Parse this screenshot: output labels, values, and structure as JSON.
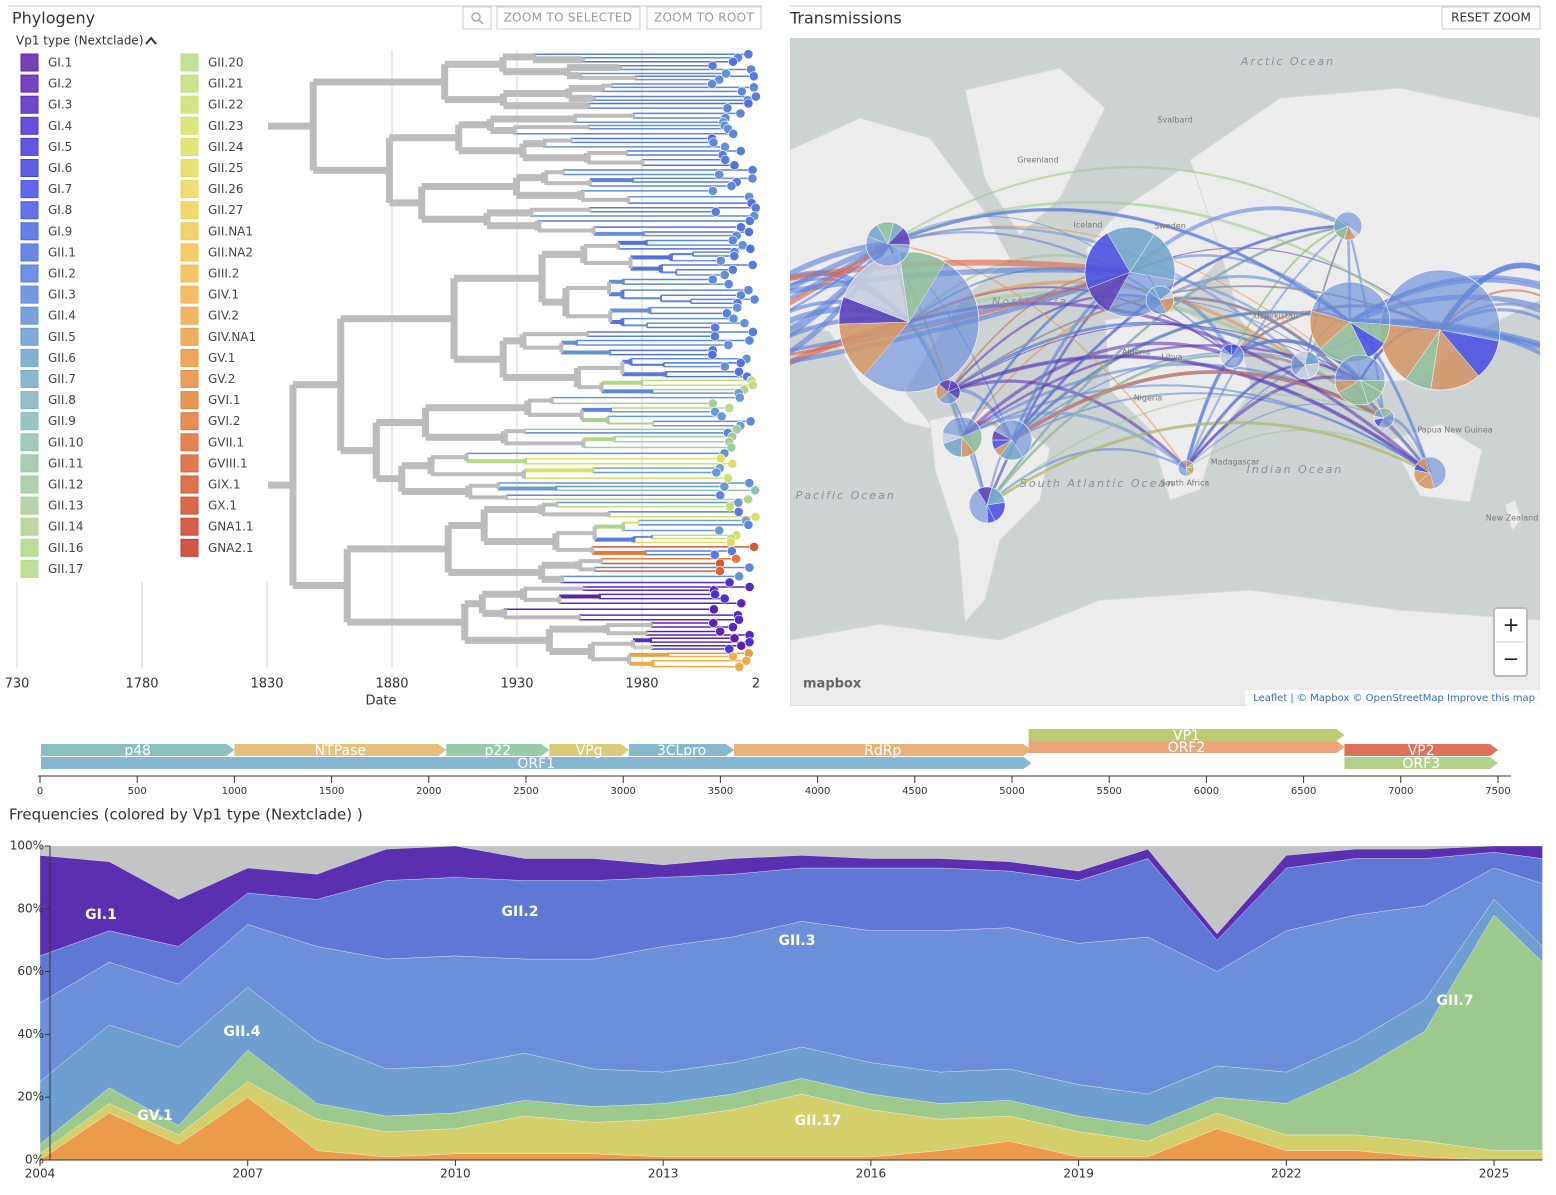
{
  "phylogeny": {
    "title": "Phylogeny",
    "buttons": [
      "ZOOM TO SELECTED",
      "ZOOM TO ROOT"
    ],
    "legend_title": "Vp1 type (Nextclade)",
    "legend": [
      {
        "name": "GI.1",
        "color": "#5e22a8"
      },
      {
        "name": "GI.2",
        "color": "#5c25b8"
      },
      {
        "name": "GI.3",
        "color": "#5529c6"
      },
      {
        "name": "GI.4",
        "color": "#4d30d2"
      },
      {
        "name": "GI.5",
        "color": "#4638dc"
      },
      {
        "name": "GI.6",
        "color": "#4343e2"
      },
      {
        "name": "GI.7",
        "color": "#454fe4"
      },
      {
        "name": "GI.8",
        "color": "#485be4"
      },
      {
        "name": "GI.9",
        "color": "#4c66e3"
      },
      {
        "name": "GII.1",
        "color": "#5171e1"
      },
      {
        "name": "GII.2",
        "color": "#577cde"
      },
      {
        "name": "GII.3",
        "color": "#5d87da"
      },
      {
        "name": "GII.4",
        "color": "#6391d6"
      },
      {
        "name": "GII.5",
        "color": "#699bd2"
      },
      {
        "name": "GII.6",
        "color": "#70a4cd"
      },
      {
        "name": "GII.7",
        "color": "#77acc7"
      },
      {
        "name": "GII.8",
        "color": "#7fb4c1"
      },
      {
        "name": "GII.9",
        "color": "#87bbba"
      },
      {
        "name": "GII.10",
        "color": "#8fc1b2"
      },
      {
        "name": "GII.11",
        "color": "#97c6aa"
      },
      {
        "name": "GII.12",
        "color": "#a0caa1"
      },
      {
        "name": "GII.13",
        "color": "#a8ce98"
      },
      {
        "name": "GII.14",
        "color": "#b0d290"
      },
      {
        "name": "GII.16",
        "color": "#b2d88a"
      },
      {
        "name": "GII.17",
        "color": "#b4db86"
      },
      {
        "name": "GII.20",
        "color": "#b7dd85"
      },
      {
        "name": "GII.21",
        "color": "#c2de7a"
      },
      {
        "name": "GII.22",
        "color": "#cce072"
      },
      {
        "name": "GII.23",
        "color": "#d6e06a"
      },
      {
        "name": "GII.24",
        "color": "#dedf63"
      },
      {
        "name": "GII.25",
        "color": "#e5dc5e"
      },
      {
        "name": "GII.26",
        "color": "#ebd85a"
      },
      {
        "name": "GII.27",
        "color": "#f0d256"
      },
      {
        "name": "GII.NA1",
        "color": "#f2cb53"
      },
      {
        "name": "GII.NA2",
        "color": "#f3c350"
      },
      {
        "name": "GIII.2",
        "color": "#f3bb4d"
      },
      {
        "name": "GIV.1",
        "color": "#f2b24a"
      },
      {
        "name": "GIV.2",
        "color": "#f0a947"
      },
      {
        "name": "GIV.NA1",
        "color": "#eea044"
      },
      {
        "name": "GV.1",
        "color": "#ec9741"
      },
      {
        "name": "GV.2",
        "color": "#e98d3e"
      },
      {
        "name": "GVI.1",
        "color": "#e6833b"
      },
      {
        "name": "GVI.2",
        "color": "#e37938"
      },
      {
        "name": "GVII.1",
        "color": "#df6f35"
      },
      {
        "name": "GVIII.1",
        "color": "#db6432"
      },
      {
        "name": "GIX.1",
        "color": "#d7592f"
      },
      {
        "name": "GX.1",
        "color": "#d34e2c"
      },
      {
        "name": "GNA1.1",
        "color": "#ce432a"
      },
      {
        "name": "GNA2.1",
        "color": "#ca3828"
      }
    ],
    "axis": {
      "label": "Date",
      "xlim": [
        1728,
        2032
      ],
      "xticks": [
        {
          "value": 1730,
          "label": "730"
        },
        1780,
        1830,
        1880,
        1930,
        1980,
        {
          "value": 2030,
          "label": "2"
        }
      ]
    }
  },
  "transmissions": {
    "title": "Transmissions",
    "button": "RESET ZOOM",
    "zoom_in": "+",
    "zoom_out": "−",
    "logo": "mapbox",
    "attribution": "Leaflet | © Mapbox © OpenStreetMap Improve this map",
    "ocean_labels": [
      "Arctic Ocean",
      "North Atla",
      "South Atlantic Ocean",
      "Indian Ocean",
      "South Pacific Ocean"
    ],
    "place_labels": [
      "Greenland",
      "Svalbard",
      "Iceland",
      "Sweden",
      "Algeria",
      "Libya",
      "Nigeria",
      "Uzbekistan",
      "Madagascar",
      "South Africa",
      "Papua New Guinea",
      "New Zealand"
    ]
  },
  "genome": {
    "xlim": [
      0,
      7500
    ],
    "xticks": [
      0,
      500,
      1000,
      1500,
      2000,
      2500,
      3000,
      3500,
      4000,
      4500,
      5000,
      5500,
      6000,
      6500,
      7000,
      7500
    ],
    "genes": [
      {
        "name": "p48",
        "start": 5,
        "end": 1000,
        "color": "#7fb8b8"
      },
      {
        "name": "NTPase",
        "start": 1000,
        "end": 2090,
        "color": "#e1b870"
      },
      {
        "name": "p22",
        "start": 2090,
        "end": 2620,
        "color": "#8ec4a0"
      },
      {
        "name": "VPg",
        "start": 2620,
        "end": 3030,
        "color": "#d6c46a"
      },
      {
        "name": "3CLpro",
        "start": 3030,
        "end": 3570,
        "color": "#7ab0c8"
      },
      {
        "name": "RdRp",
        "start": 3570,
        "end": 5100,
        "color": "#e6a86a"
      },
      {
        "name": "ORF1",
        "start": 5,
        "end": 5100,
        "color": "#7aaecc"
      },
      {
        "name": "VP1",
        "start": 5085,
        "end": 6710,
        "color": "#b8c466"
      },
      {
        "name": "ORF2",
        "start": 5085,
        "end": 6710,
        "color": "#e89c6c"
      },
      {
        "name": "VP2",
        "start": 6710,
        "end": 7500,
        "color": "#dc6048"
      },
      {
        "name": "ORF3",
        "start": 6710,
        "end": 7500,
        "color": "#a8cc7c"
      }
    ]
  },
  "chart_data": {
    "type": "stacked_area",
    "title": "Frequencies (colored by Vp1 type (Nextclade) )",
    "x": [
      2004,
      2005,
      2006,
      2007,
      2008,
      2009,
      2010,
      2011,
      2012,
      2013,
      2014,
      2015,
      2016,
      2017,
      2018,
      2019,
      2020,
      2021,
      2022,
      2023,
      2024,
      2025,
      2025.7
    ],
    "xlim": [
      2004,
      2025.7
    ],
    "xticks": [
      2004,
      2007,
      2010,
      2013,
      2016,
      2019,
      2022,
      2025
    ],
    "ylim": [
      0,
      100
    ],
    "yticks": [
      {
        "value": 0,
        "label": "0%"
      },
      {
        "value": 20,
        "label": "20%"
      },
      {
        "value": 40,
        "label": "40%"
      },
      {
        "value": 60,
        "label": "60%"
      },
      {
        "value": 80,
        "label": "80%"
      },
      {
        "value": 100,
        "label": "100%"
      }
    ],
    "series": [
      {
        "name": "GV.1",
        "color": "#ec9a4c",
        "values": [
          0,
          15,
          5,
          20,
          3,
          1,
          2,
          2,
          2,
          1,
          1,
          1,
          1,
          3,
          6,
          1,
          1,
          10,
          3,
          3,
          1,
          0,
          0
        ]
      },
      {
        "name": "GII.17",
        "color": "#d4cf6a",
        "values": [
          2,
          3,
          3,
          5,
          10,
          8,
          8,
          12,
          10,
          12,
          15,
          20,
          15,
          10,
          8,
          8,
          5,
          5,
          5,
          5,
          5,
          3,
          3
        ]
      },
      {
        "name": "GII.7",
        "color": "#9dc98c",
        "values": [
          3,
          5,
          3,
          10,
          5,
          5,
          5,
          5,
          5,
          5,
          5,
          5,
          5,
          5,
          5,
          5,
          5,
          5,
          10,
          20,
          35,
          75,
          60
        ]
      },
      {
        "name": "GII.4",
        "color": "#6e9fd0",
        "values": [
          20,
          20,
          25,
          20,
          20,
          15,
          15,
          15,
          12,
          10,
          10,
          10,
          10,
          10,
          10,
          10,
          10,
          10,
          10,
          10,
          10,
          5,
          5
        ]
      },
      {
        "name": "GII.3",
        "color": "#6b8fd8",
        "values": [
          25,
          20,
          20,
          20,
          30,
          35,
          35,
          30,
          35,
          40,
          40,
          40,
          42,
          45,
          45,
          45,
          50,
          30,
          45,
          40,
          30,
          10,
          20
        ]
      },
      {
        "name": "GII.2",
        "color": "#5f78d6",
        "values": [
          15,
          10,
          12,
          10,
          15,
          25,
          25,
          25,
          25,
          22,
          20,
          17,
          20,
          20,
          18,
          20,
          25,
          10,
          20,
          18,
          15,
          5,
          8
        ]
      },
      {
        "name": "GI.1",
        "color": "#5a2fb0",
        "values": [
          32,
          22,
          15,
          8,
          8,
          10,
          10,
          7,
          7,
          4,
          5,
          4,
          3,
          3,
          3,
          3,
          3,
          2,
          4,
          3,
          3,
          2,
          4
        ]
      }
    ]
  }
}
